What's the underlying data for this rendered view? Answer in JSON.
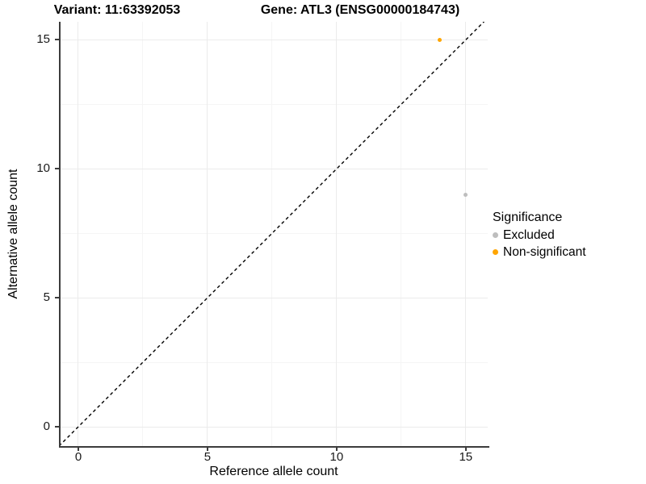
{
  "chart_data": {
    "type": "scatter",
    "titles": {
      "left": "Variant: 11:63392053",
      "right": "Gene: ATL3 (ENSG00000184743)"
    },
    "xlabel": "Reference allele count",
    "ylabel": "Alternative allele count",
    "xlim": [
      -0.75,
      15.85
    ],
    "ylim": [
      -0.75,
      15.7
    ],
    "x_ticks": [
      0,
      5,
      10,
      15
    ],
    "y_ticks": [
      0,
      5,
      10,
      15
    ],
    "x_minor_ticks": [
      2.5,
      7.5,
      12.5
    ],
    "y_minor_ticks": [
      2.5,
      7.5,
      12.5
    ],
    "grid": "major+minor",
    "identity_line": {
      "slope": 1,
      "intercept": 0,
      "style": "dashed",
      "color": "#000000"
    },
    "legend": {
      "title": "Significance",
      "position": "right"
    },
    "series": [
      {
        "name": "Excluded",
        "color": "#BEBEBE",
        "points": [
          {
            "x": 15,
            "y": 9
          }
        ]
      },
      {
        "name": "Non-significant",
        "color": "#FFA500",
        "points": [
          {
            "x": 14,
            "y": 15
          }
        ]
      }
    ]
  }
}
